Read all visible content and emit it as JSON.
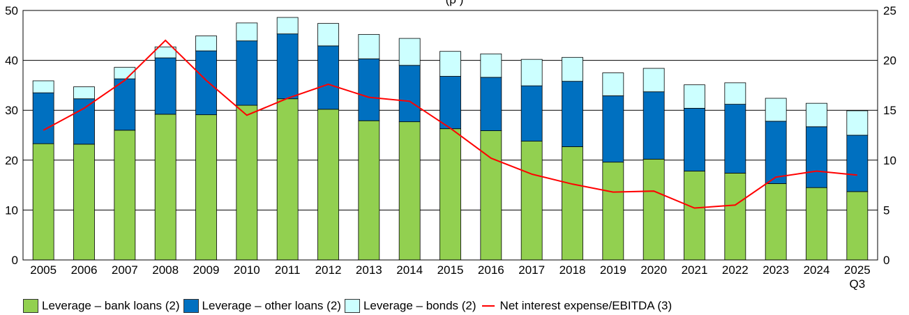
{
  "title_fragment": "(ρ        )",
  "chart_data": {
    "type": "bar",
    "stacked": true,
    "categories": [
      "2005",
      "2006",
      "2007",
      "2008",
      "2009",
      "2010",
      "2011",
      "2012",
      "2013",
      "2014",
      "2015",
      "2016",
      "2017",
      "2018",
      "2019",
      "2020",
      "2021",
      "2022",
      "2023",
      "2024",
      "2025"
    ],
    "category_sublabels": {
      "2025": "Q3"
    },
    "series": [
      {
        "name": "Leverage – bank loans (2)",
        "type": "bar",
        "axis": "left",
        "color": "#92d050",
        "values": [
          23.3,
          23.2,
          26.0,
          29.2,
          29.1,
          31.0,
          32.3,
          30.2,
          27.9,
          27.7,
          26.3,
          25.9,
          23.8,
          22.7,
          19.6,
          20.2,
          17.8,
          17.4,
          15.3,
          14.5,
          13.7
        ]
      },
      {
        "name": "Leverage – other loans (2)",
        "type": "bar",
        "axis": "left",
        "color": "#0070c0",
        "values": [
          10.2,
          9.1,
          10.3,
          11.3,
          12.8,
          12.9,
          13.0,
          12.7,
          12.4,
          11.3,
          10.5,
          10.7,
          11.1,
          13.1,
          13.3,
          13.5,
          12.6,
          13.8,
          12.5,
          12.2,
          11.3
        ]
      },
      {
        "name": "Leverage – bonds (2)",
        "type": "bar",
        "axis": "left",
        "color": "#ccffff",
        "values": [
          2.4,
          2.4,
          2.3,
          2.2,
          3.0,
          3.6,
          3.3,
          4.5,
          4.9,
          5.4,
          5.0,
          4.7,
          5.3,
          4.8,
          4.6,
          4.7,
          4.7,
          4.3,
          4.6,
          4.7,
          4.9
        ]
      },
      {
        "name": "Net interest expense/EBITDA (3)",
        "type": "line",
        "axis": "right",
        "color": "#ff0000",
        "values": [
          13.0,
          15.2,
          18.0,
          22.0,
          18.0,
          14.5,
          16.2,
          17.6,
          16.3,
          15.9,
          13.2,
          10.2,
          8.6,
          7.6,
          6.8,
          6.9,
          5.2,
          5.5,
          8.3,
          8.9,
          8.5
        ]
      }
    ],
    "ylim_left": [
      0,
      50
    ],
    "yticks_left": [
      "0",
      "10",
      "20",
      "30",
      "40",
      "50"
    ],
    "ylim_right": [
      0,
      25
    ],
    "yticks_right": [
      "0",
      "5",
      "10",
      "15",
      "20",
      "25"
    ],
    "grid": true,
    "legend_position": "bottom-left"
  }
}
